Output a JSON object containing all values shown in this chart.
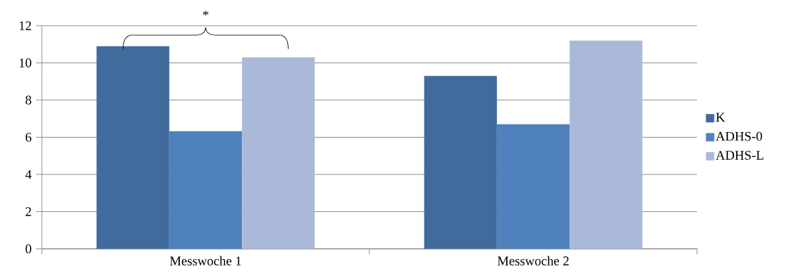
{
  "chart_data": {
    "type": "bar",
    "categories": [
      "Messwoche 1",
      "Messwoche 2"
    ],
    "series": [
      {
        "name": "K",
        "color": "#416b9d",
        "values": [
          10.9,
          9.3
        ]
      },
      {
        "name": "ADHS-0",
        "color": "#4f81bd",
        "values": [
          6.33,
          6.7
        ]
      },
      {
        "name": "ADHS-L",
        "color": "#aab9d7",
        "values": [
          10.3,
          11.2
        ]
      }
    ],
    "ylim": [
      0,
      12
    ],
    "yticks": [
      0,
      2,
      4,
      6,
      8,
      10,
      12
    ],
    "grid": "y",
    "legend": "right",
    "annotations": [
      "*"
    ]
  }
}
